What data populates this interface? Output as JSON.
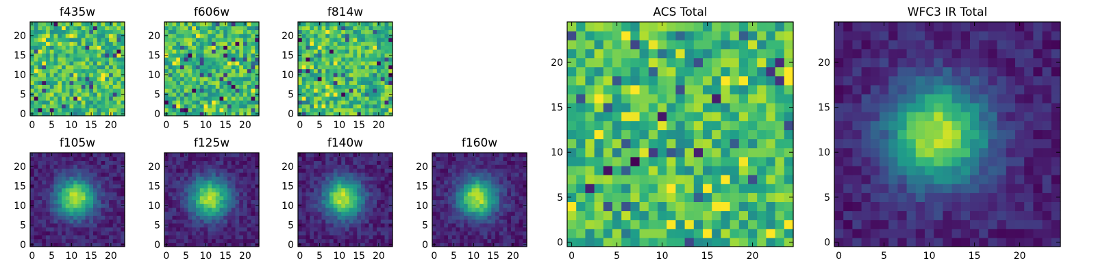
{
  "figure": {
    "background": "#ffffff",
    "colormap": "viridis"
  },
  "chart_data": [
    {
      "type": "heatmap",
      "title": "f435w",
      "profile": "noise",
      "seed": 11,
      "grid": [
        24,
        24
      ],
      "xlim": [
        -0.5,
        23.5
      ],
      "ylim": [
        -0.5,
        23.5
      ],
      "xticks": [
        0,
        5,
        10,
        15,
        20
      ],
      "yticks": [
        0,
        5,
        10,
        15,
        20
      ],
      "peak": [
        12,
        12
      ],
      "grid_lines": false
    },
    {
      "type": "heatmap",
      "title": "f606w",
      "profile": "noise",
      "seed": 23,
      "grid": [
        24,
        24
      ],
      "xlim": [
        -0.5,
        23.5
      ],
      "ylim": [
        -0.5,
        23.5
      ],
      "xticks": [
        0,
        5,
        10,
        15,
        20
      ],
      "yticks": [
        0,
        5,
        10,
        15,
        20
      ],
      "peak": [
        12,
        12
      ],
      "grid_lines": false
    },
    {
      "type": "heatmap",
      "title": "f814w",
      "profile": "noise",
      "seed": 37,
      "grid": [
        24,
        24
      ],
      "xlim": [
        -0.5,
        23.5
      ],
      "ylim": [
        -0.5,
        23.5
      ],
      "xticks": [
        0,
        5,
        10,
        15,
        20
      ],
      "yticks": [
        0,
        5,
        10,
        15,
        20
      ],
      "peak": [
        11,
        12
      ],
      "grid_lines": false
    },
    {
      "type": "heatmap",
      "title": "f105w",
      "profile": "source",
      "seed": 41,
      "grid": [
        24,
        24
      ],
      "xlim": [
        -0.5,
        23.5
      ],
      "ylim": [
        -0.5,
        23.5
      ],
      "xticks": [
        0,
        5,
        10,
        15,
        20
      ],
      "yticks": [
        0,
        5,
        10,
        15,
        20
      ],
      "peak": [
        11,
        12
      ],
      "grid_lines": false
    },
    {
      "type": "heatmap",
      "title": "f125w",
      "profile": "source",
      "seed": 53,
      "grid": [
        24,
        24
      ],
      "xlim": [
        -0.5,
        23.5
      ],
      "ylim": [
        -0.5,
        23.5
      ],
      "xticks": [
        0,
        5,
        10,
        15,
        20
      ],
      "yticks": [
        0,
        5,
        10,
        15,
        20
      ],
      "peak": [
        11,
        12
      ],
      "grid_lines": false
    },
    {
      "type": "heatmap",
      "title": "f140w",
      "profile": "source",
      "seed": 67,
      "grid": [
        24,
        24
      ],
      "xlim": [
        -0.5,
        23.5
      ],
      "ylim": [
        -0.5,
        23.5
      ],
      "xticks": [
        0,
        5,
        10,
        15,
        20
      ],
      "yticks": [
        0,
        5,
        10,
        15,
        20
      ],
      "peak": [
        11,
        12
      ],
      "grid_lines": false
    },
    {
      "type": "heatmap",
      "title": "f160w",
      "profile": "source",
      "seed": 79,
      "grid": [
        24,
        24
      ],
      "xlim": [
        -0.5,
        23.5
      ],
      "ylim": [
        -0.5,
        23.5
      ],
      "xticks": [
        0,
        5,
        10,
        15,
        20
      ],
      "yticks": [
        0,
        5,
        10,
        15,
        20
      ],
      "peak": [
        11,
        12
      ],
      "grid_lines": false
    },
    {
      "type": "heatmap",
      "title": "ACS Total",
      "profile": "noise",
      "seed": 97,
      "grid": [
        25,
        25
      ],
      "xlim": [
        -0.5,
        24.5
      ],
      "ylim": [
        -0.5,
        24.5
      ],
      "xticks": [
        0,
        5,
        10,
        15,
        20
      ],
      "yticks": [
        0,
        5,
        10,
        15,
        20
      ],
      "peak": [
        12,
        12
      ],
      "grid_lines": false
    },
    {
      "type": "heatmap",
      "title": "WFC3 IR Total",
      "profile": "source",
      "seed": 101,
      "grid": [
        25,
        25
      ],
      "xlim": [
        -0.5,
        24.5
      ],
      "ylim": [
        -0.5,
        24.5
      ],
      "xticks": [
        0,
        5,
        10,
        15,
        20
      ],
      "yticks": [
        0,
        5,
        10,
        15,
        20
      ],
      "peak": [
        11,
        12
      ],
      "grid_lines": false
    }
  ]
}
